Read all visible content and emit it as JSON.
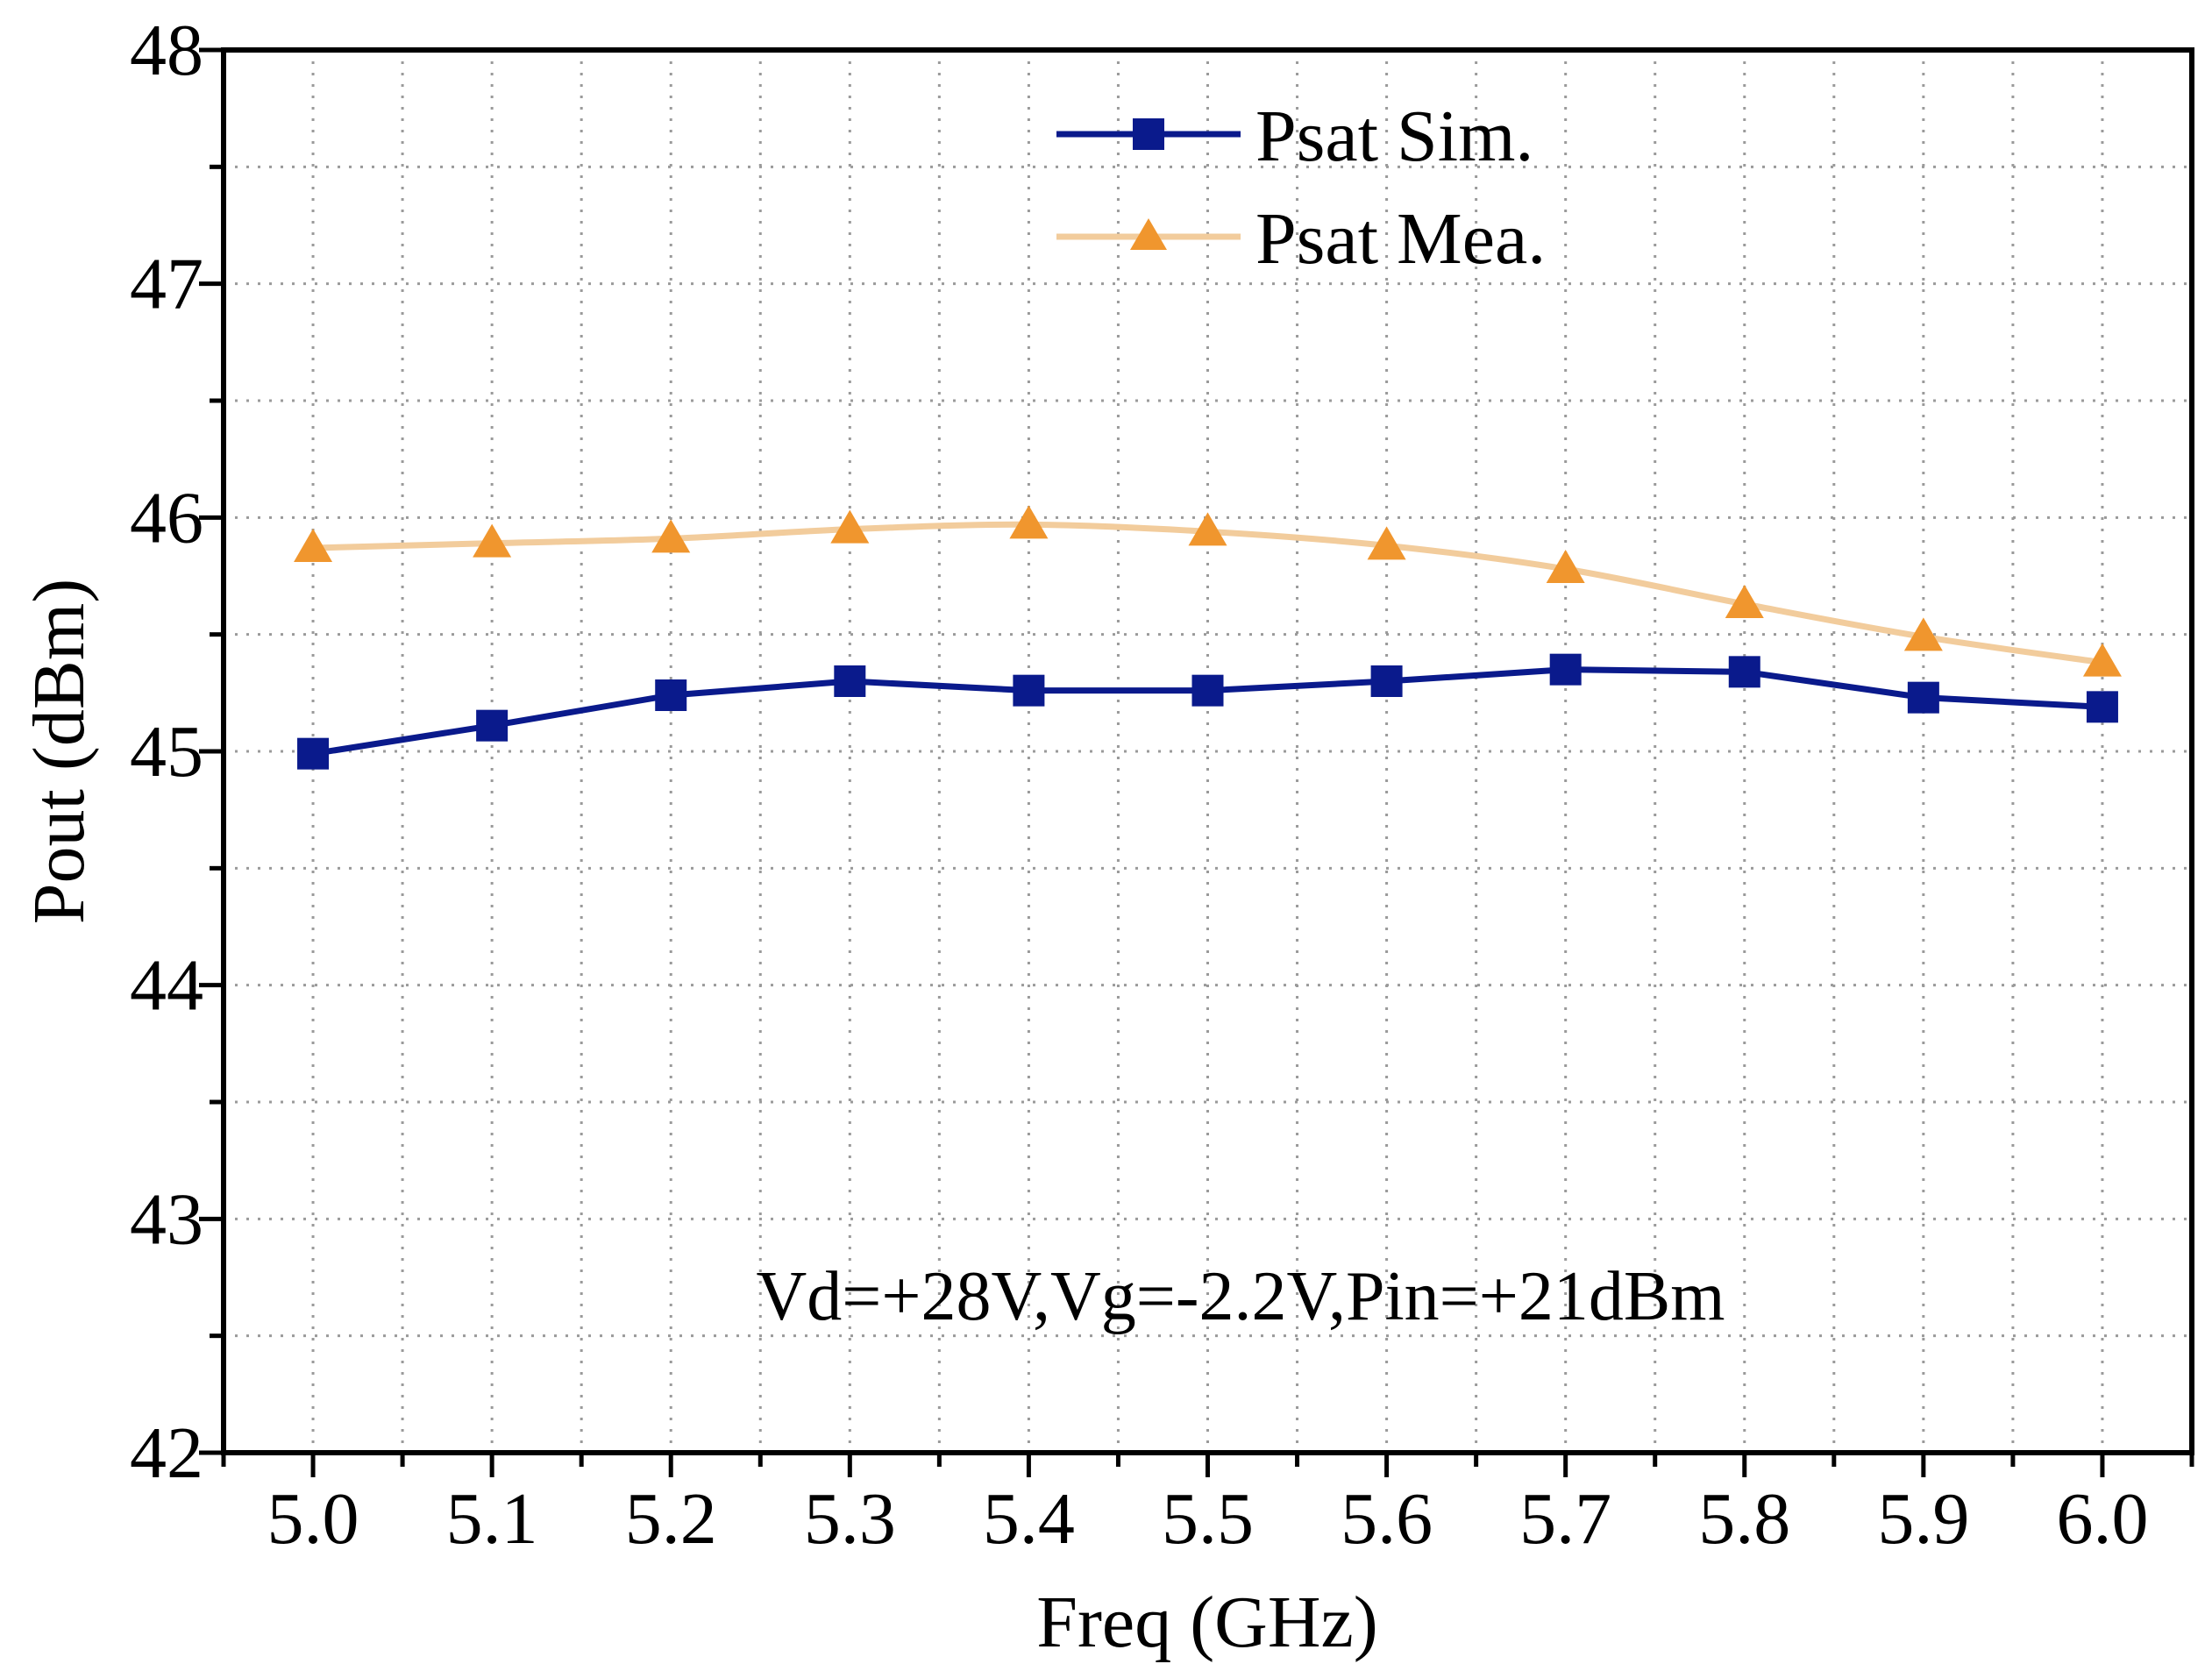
{
  "chart_data": {
    "type": "line",
    "x": [
      5.0,
      5.1,
      5.2,
      5.3,
      5.4,
      5.5,
      5.6,
      5.7,
      5.8,
      5.9,
      6.0
    ],
    "x_tick_labels": [
      "5.0",
      "5.1",
      "5.2",
      "5.3",
      "5.4",
      "5.5",
      "5.6",
      "5.7",
      "5.8",
      "5.9",
      "6.0"
    ],
    "y_ticks": [
      42,
      43,
      44,
      45,
      46,
      47,
      48
    ],
    "y_tick_labels": [
      "42",
      "43",
      "44",
      "45",
      "46",
      "47",
      "48"
    ],
    "xlabel": "Freq (GHz)",
    "ylabel": "Pout (dBm)",
    "xlim": [
      4.95,
      6.05
    ],
    "ylim": [
      42,
      48
    ],
    "grid": true,
    "legend_position": "top-center",
    "annotation": "Vd=+28V,Vg=-2.2V,Pin=+21dBm",
    "series": [
      {
        "name": "Psat Sim.",
        "color": "#0a1a8c",
        "marker": "square",
        "values": [
          44.99,
          45.11,
          45.24,
          45.3,
          45.26,
          45.26,
          45.3,
          45.35,
          45.34,
          45.23,
          45.19
        ]
      },
      {
        "name": "Psat Mea.",
        "color": "#f0962e",
        "line_color": "#f2cc9c",
        "marker": "triangle",
        "values": [
          45.87,
          45.89,
          45.91,
          45.95,
          45.97,
          45.94,
          45.88,
          45.78,
          45.63,
          45.49,
          45.38
        ]
      }
    ]
  }
}
